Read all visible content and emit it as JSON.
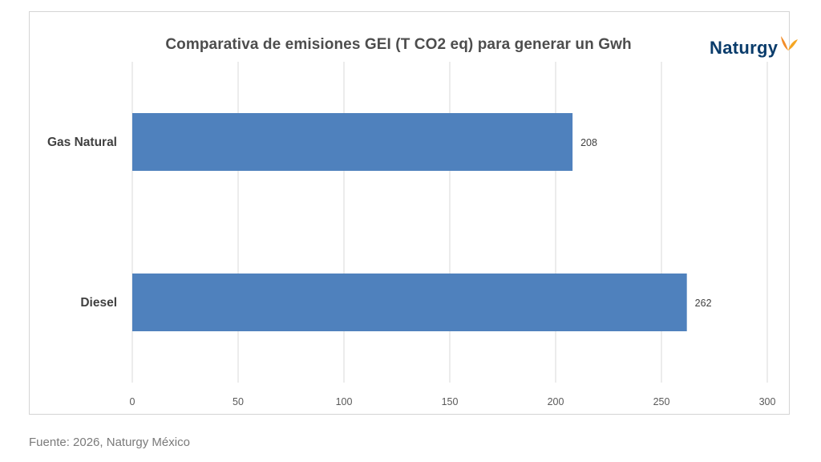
{
  "chart_data": {
    "type": "bar",
    "orientation": "horizontal",
    "title": "Comparativa de emisiones GEI (T CO2 eq) para generar un Gwh",
    "categories": [
      "Gas Natural",
      "Diesel"
    ],
    "values": [
      208,
      262
    ],
    "data_labels": [
      "208",
      "262"
    ],
    "xlim": [
      0,
      300
    ],
    "x_ticks": [
      0,
      50,
      100,
      150,
      200,
      250,
      300
    ],
    "xlabel": "",
    "ylabel": "",
    "grid": "vertical",
    "bar_color": "#4F81BD",
    "grid_color": "#D9D9D9"
  },
  "brand": {
    "name": "Naturgy",
    "logo_icon": "naturgy-butterfly-icon",
    "name_color": "#0A3C6B",
    "mark_color": "#F28C28"
  },
  "source": "Fuente: 2026, Naturgy México"
}
